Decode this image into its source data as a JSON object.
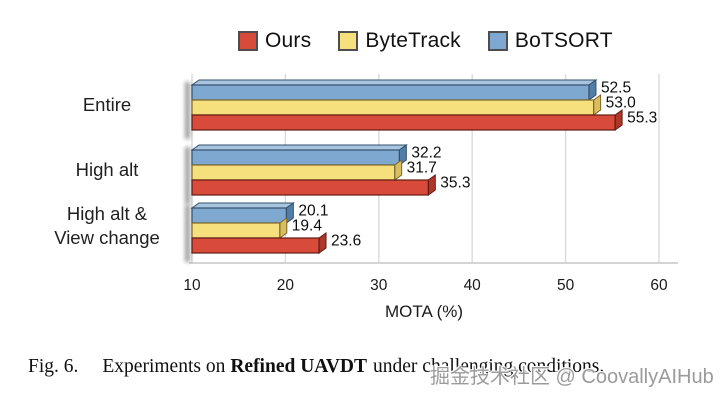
{
  "chart_data": {
    "type": "bar",
    "orientation": "horizontal",
    "title": "",
    "xlabel": "MOTA (%)",
    "ylabel": "",
    "xlim": [
      10,
      60
    ],
    "xticks": [
      10,
      20,
      30,
      40,
      50,
      60
    ],
    "grid": true,
    "legend_position": "top",
    "style": "3d-beveled-bars",
    "categories": [
      "Entire",
      "High alt",
      "High alt & View change"
    ],
    "category_lines": [
      [
        "Entire"
      ],
      [
        "High alt"
      ],
      [
        "High alt &",
        "View change"
      ]
    ],
    "series": [
      {
        "name": "Ours",
        "color": "#d84a3a",
        "shades": {
          "top": "#e3776a",
          "side": "#ad382a",
          "border": "#621b11"
        },
        "values": [
          55.3,
          35.3,
          23.6
        ],
        "labels": [
          "55.3",
          "35.3",
          "23.6"
        ]
      },
      {
        "name": "ByteTrack",
        "color": "#f6e07d",
        "shades": {
          "top": "#faeca9",
          "side": "#d9bd61",
          "border": "#7b6729"
        },
        "values": [
          53.0,
          31.7,
          19.4
        ],
        "labels": [
          "53.0",
          "31.7",
          "19.4"
        ]
      },
      {
        "name": "BoTSORT",
        "color": "#7fa8d1",
        "shades": {
          "top": "#a8c5e0",
          "side": "#527ea6",
          "border": "#33506c"
        },
        "values": [
          52.5,
          32.2,
          20.1
        ],
        "labels": [
          "52.5",
          "32.2",
          "20.1"
        ]
      }
    ],
    "colors": {
      "gridline": "#dadada",
      "baseline": "#c6c6c6",
      "axis_text": "#1a1a1a",
      "value_label": "#0d0d0d",
      "category_text": "#1f1f1f",
      "shadow": "#3a3a3a"
    }
  },
  "caption": {
    "fig_label": "Fig. 6.",
    "text_before_bold": "Experiments on",
    "bold_text": "Refined UAVDT",
    "text_after_bold": "under challenging conditions."
  },
  "watermark": {
    "text": "掘金技术社区 @ CoovallyAIHub"
  }
}
